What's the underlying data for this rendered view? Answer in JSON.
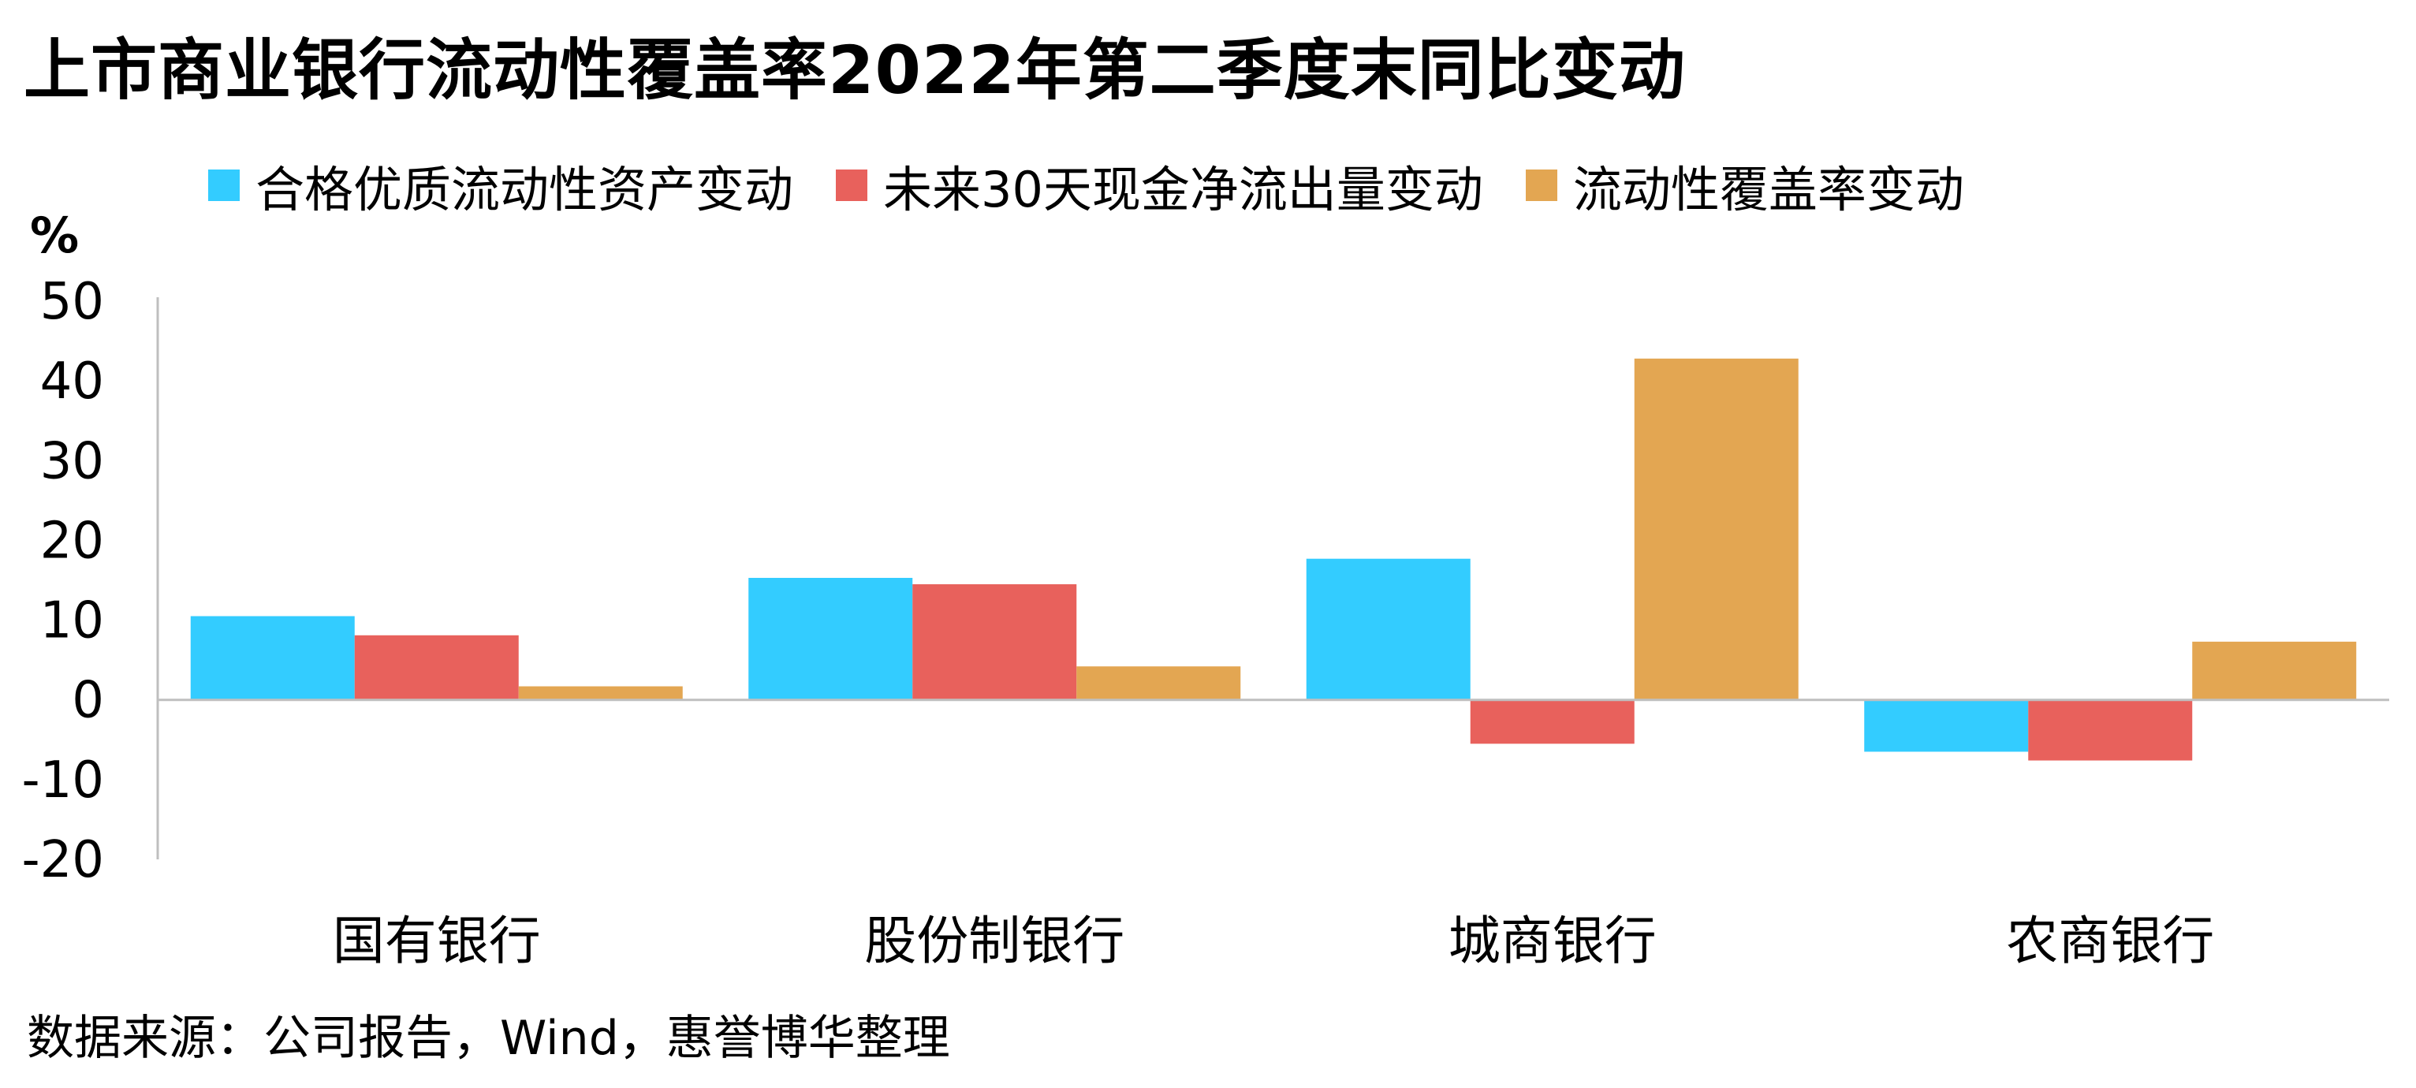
{
  "title": "上市商业银行流动性覆盖率2022年第二季度末同比变动",
  "unit": "%",
  "source": "数据来源：公司报告，Wind，惠誉博华整理",
  "colors": {
    "series1": "#33CCFF",
    "series2": "#E8615C",
    "series3": "#E3A652",
    "axis": "#BFBFBF"
  },
  "chart_data": {
    "type": "bar",
    "ylabel": "%",
    "ylim": [
      -20,
      50
    ],
    "yticks": [
      50,
      40,
      30,
      20,
      10,
      0,
      -10,
      -20
    ],
    "categories": [
      "国有银行",
      "股份制银行",
      "城商银行",
      "农商银行"
    ],
    "series": [
      {
        "name": "合格优质流动性资产变动",
        "values": [
          10.5,
          15.3,
          17.7,
          -6.5
        ]
      },
      {
        "name": "未来30天现金净流出量变动",
        "values": [
          8.1,
          14.5,
          -5.5,
          -7.6
        ]
      },
      {
        "name": "流动性覆盖率变动",
        "values": [
          1.7,
          4.2,
          42.8,
          7.3
        ]
      }
    ],
    "legend_position": "top",
    "grid": false
  }
}
